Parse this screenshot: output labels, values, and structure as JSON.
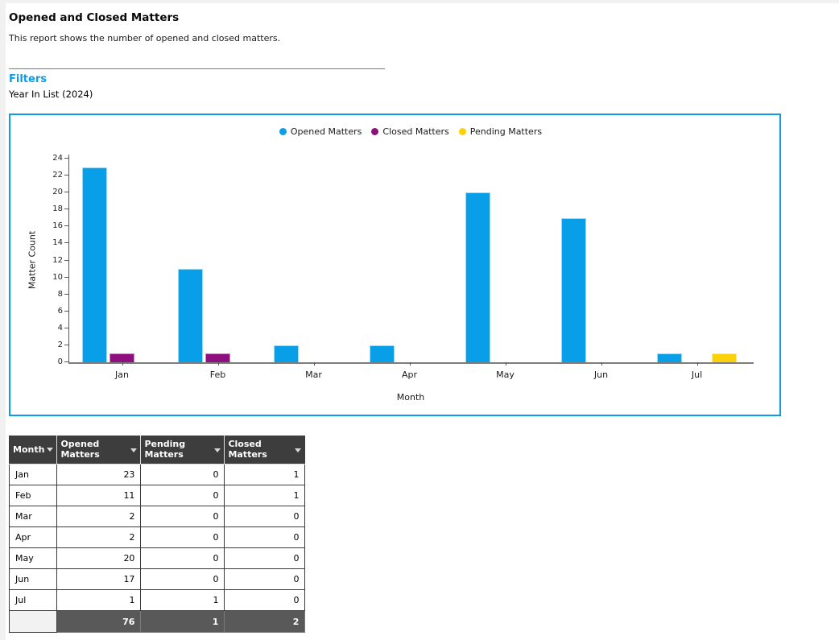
{
  "page": {
    "title": "Opened and Closed Matters",
    "subtitle": "This report shows the number of opened and closed matters."
  },
  "filters": {
    "heading": "Filters",
    "items": [
      "Year In List (2024)"
    ]
  },
  "colors": {
    "accent_blue": "#0d9ce6",
    "opened": "#089ee8",
    "closed": "#8e107e",
    "pending": "#fbd20a",
    "table_header_bg": "#3d3d3d",
    "totals_bg": "#595959"
  },
  "chart_data": {
    "type": "bar",
    "categories": [
      "Jan",
      "Feb",
      "Mar",
      "Apr",
      "May",
      "Jun",
      "Jul"
    ],
    "series": [
      {
        "name": "Opened Matters",
        "color": "#089ee8",
        "values": [
          23,
          11,
          2,
          2,
          20,
          17,
          1
        ]
      },
      {
        "name": "Closed Matters",
        "color": "#8e107e",
        "values": [
          1,
          1,
          0,
          0,
          0,
          0,
          0
        ]
      },
      {
        "name": "Pending Matters",
        "color": "#fbd20a",
        "values": [
          0,
          0,
          0,
          0,
          0,
          0,
          1
        ]
      }
    ],
    "title": "",
    "xlabel": "Month",
    "ylabel": "Matter Count",
    "ylim": [
      0,
      24
    ],
    "ytick_step": 2,
    "grid": false,
    "legend_position": "top"
  },
  "table": {
    "columns": [
      "Month",
      "Opened Matters",
      "Pending Matters",
      "Closed Matters"
    ],
    "rows": [
      [
        "Jan",
        23,
        0,
        1
      ],
      [
        "Feb",
        11,
        0,
        1
      ],
      [
        "Mar",
        2,
        0,
        0
      ],
      [
        "Apr",
        2,
        0,
        0
      ],
      [
        "May",
        20,
        0,
        0
      ],
      [
        "Jun",
        17,
        0,
        0
      ],
      [
        "Jul",
        1,
        1,
        0
      ]
    ],
    "totals": [
      "",
      76,
      1,
      2
    ]
  }
}
